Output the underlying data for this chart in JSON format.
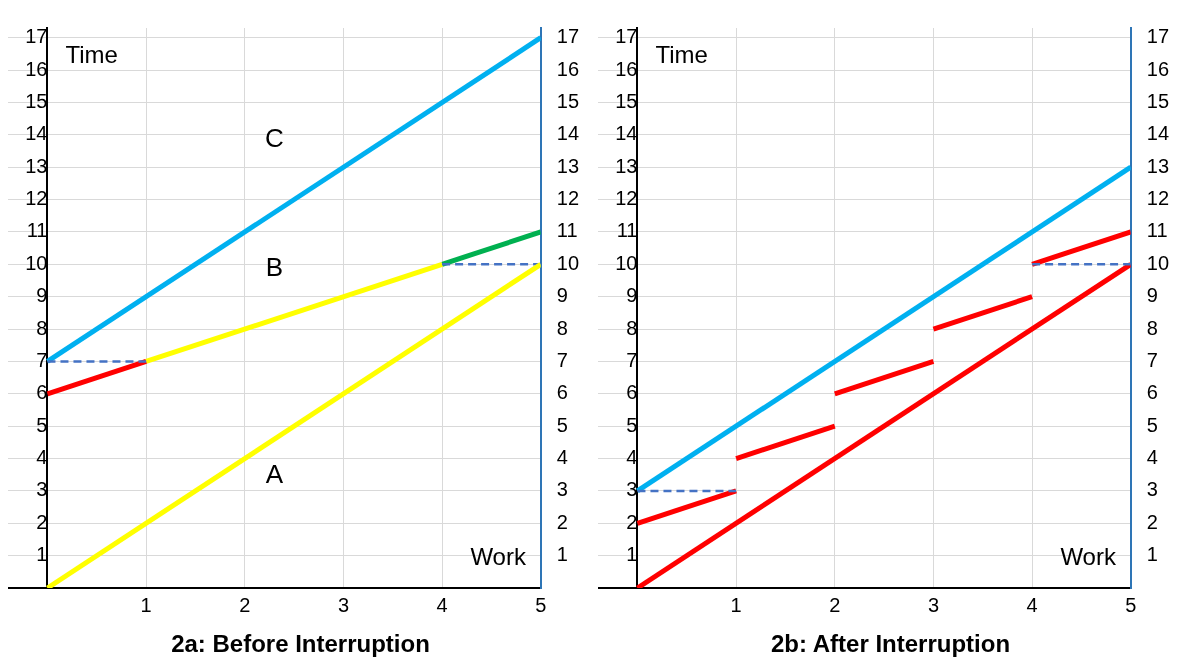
{
  "chart_data": [
    {
      "type": "line",
      "title": "2a: Before Interruption",
      "xlabel": "Work",
      "ylabel": "Time",
      "xlim": [
        -0.4,
        5
      ],
      "xticks": [
        1,
        2,
        3,
        4,
        5
      ],
      "ylim": [
        0,
        17.3
      ],
      "yticks": [
        1,
        2,
        3,
        4,
        5,
        6,
        7,
        8,
        9,
        10,
        11,
        12,
        13,
        14,
        15,
        16,
        17
      ],
      "y2lim": [
        0,
        17.3
      ],
      "y2ticks": [
        1,
        2,
        3,
        4,
        5,
        6,
        7,
        8,
        9,
        10,
        11,
        12,
        13,
        14,
        15,
        16,
        17
      ],
      "grid": true,
      "legend": false,
      "marker": "none",
      "line_style": "solid",
      "annotations": [
        "C",
        "B",
        "A"
      ],
      "series": [
        {
          "color": "#ffff00",
          "x": [
            0,
            5
          ],
          "values": [
            0,
            10
          ]
        },
        {
          "color": "#4472c4",
          "line_style": "dashed",
          "x": [
            0,
            1
          ],
          "values": [
            7,
            7
          ]
        },
        {
          "color": "#4472c4",
          "line_style": "dashed",
          "x": [
            4,
            5
          ],
          "values": [
            10,
            10
          ]
        },
        {
          "color": "#ff0000",
          "x": [
            0,
            1
          ],
          "values": [
            6,
            7
          ]
        },
        {
          "color": "#ffff00",
          "x": [
            1,
            4
          ],
          "values": [
            7,
            10
          ]
        },
        {
          "color": "#00b050",
          "x": [
            4,
            5
          ],
          "values": [
            10,
            11
          ]
        },
        {
          "color": "#00b0f0",
          "x": [
            0,
            5
          ],
          "values": [
            7,
            17
          ]
        }
      ]
    },
    {
      "type": "line",
      "title": "2b: After Interruption",
      "xlabel": "Work",
      "ylabel": "Time",
      "xlim": [
        -0.4,
        5
      ],
      "xticks": [
        1,
        2,
        3,
        4,
        5
      ],
      "ylim": [
        0,
        17.3
      ],
      "yticks": [
        1,
        2,
        3,
        4,
        5,
        6,
        7,
        8,
        9,
        10,
        11,
        12,
        13,
        14,
        15,
        16,
        17
      ],
      "y2lim": [
        0,
        17.3
      ],
      "y2ticks": [
        1,
        2,
        3,
        4,
        5,
        6,
        7,
        8,
        9,
        10,
        11,
        12,
        13,
        14,
        15,
        16,
        17
      ],
      "grid": true,
      "legend": false,
      "marker": "none",
      "line_style": "solid",
      "series": [
        {
          "color": "#4472c4",
          "line_style": "dashed",
          "x": [
            0,
            1
          ],
          "values": [
            3,
            3
          ]
        },
        {
          "color": "#4472c4",
          "line_style": "dashed",
          "x": [
            4,
            5
          ],
          "values": [
            10,
            10
          ]
        },
        {
          "color": "#ff0000",
          "x": [
            0,
            5
          ],
          "values": [
            0,
            10
          ]
        },
        {
          "color": "#ff0000",
          "x": [
            0,
            1
          ],
          "values": [
            2,
            3
          ]
        },
        {
          "color": "#ff0000",
          "x": [
            1,
            2
          ],
          "values": [
            4,
            5
          ]
        },
        {
          "color": "#ff0000",
          "x": [
            2,
            3
          ],
          "values": [
            6,
            7
          ]
        },
        {
          "color": "#ff0000",
          "x": [
            3,
            4
          ],
          "values": [
            8,
            9
          ]
        },
        {
          "color": "#ff0000",
          "x": [
            4,
            5
          ],
          "values": [
            10,
            11
          ]
        },
        {
          "color": "#00b0f0",
          "x": [
            0,
            5
          ],
          "values": [
            3,
            13
          ]
        }
      ]
    }
  ]
}
